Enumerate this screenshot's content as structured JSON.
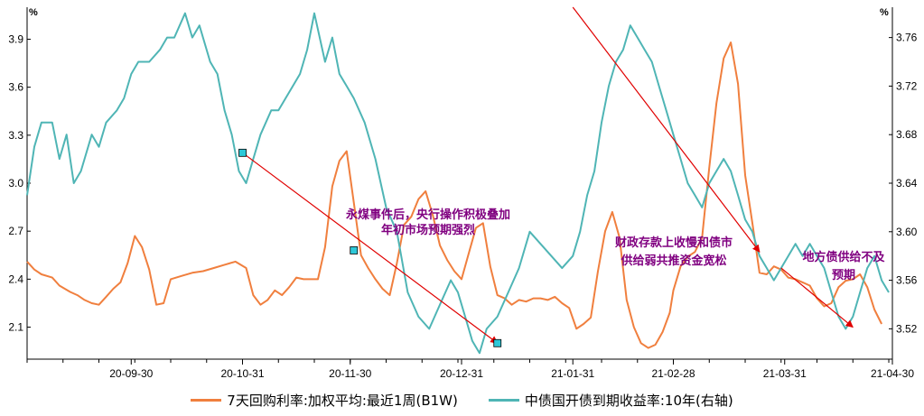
{
  "chart_data": {
    "type": "line",
    "y_left_unit": "%",
    "y_right_unit": "%",
    "y_left": {
      "range": [
        1.9,
        4.1
      ],
      "ticks": [
        "2.1",
        "2.4",
        "2.7",
        "3.0",
        "3.3",
        "3.6",
        "3.9"
      ],
      "tick_values": [
        2.1,
        2.4,
        2.7,
        3.0,
        3.3,
        3.6,
        3.9
      ]
    },
    "y_right": {
      "range": [
        3.495,
        3.785
      ],
      "ticks": [
        "3.52",
        "3.56",
        "3.60",
        "3.64",
        "3.68",
        "3.72",
        "3.76"
      ],
      "tick_values": [
        3.52,
        3.56,
        3.6,
        3.64,
        3.68,
        3.72,
        3.76
      ]
    },
    "x_range": [
      "2020-09-01",
      "2021-04-30"
    ],
    "x_ticks": [
      {
        "label": "20-09-30",
        "date": "2020-09-30"
      },
      {
        "label": "20-10-31",
        "date": "2020-10-31"
      },
      {
        "label": "20-11-30",
        "date": "2020-11-30"
      },
      {
        "label": "20-12-31",
        "date": "2020-12-31"
      },
      {
        "label": "21-01-31",
        "date": "2021-01-31"
      },
      {
        "label": "21-02-28",
        "date": "2021-02-28"
      },
      {
        "label": "21-03-31",
        "date": "2021-03-31"
      },
      {
        "label": "21-04-30",
        "date": "2021-04-30"
      }
    ],
    "series": [
      {
        "name": "7天回购利率:加权平均:最近1周(B1W)",
        "color": "#f07f3e",
        "axis": "left",
        "points": [
          [
            "2020-09-01",
            2.51
          ],
          [
            "2020-09-03",
            2.46
          ],
          [
            "2020-09-05",
            2.43
          ],
          [
            "2020-09-08",
            2.41
          ],
          [
            "2020-09-10",
            2.36
          ],
          [
            "2020-09-13",
            2.32
          ],
          [
            "2020-09-15",
            2.3
          ],
          [
            "2020-09-17",
            2.27
          ],
          [
            "2020-09-19",
            2.25
          ],
          [
            "2020-09-21",
            2.24
          ],
          [
            "2020-09-23",
            2.29
          ],
          [
            "2020-09-25",
            2.34
          ],
          [
            "2020-09-27",
            2.38
          ],
          [
            "2020-09-29",
            2.5
          ],
          [
            "2020-10-01",
            2.67
          ],
          [
            "2020-10-03",
            2.6
          ],
          [
            "2020-10-05",
            2.46
          ],
          [
            "2020-10-07",
            2.24
          ],
          [
            "2020-10-09",
            2.25
          ],
          [
            "2020-10-11",
            2.4
          ],
          [
            "2020-10-14",
            2.42
          ],
          [
            "2020-10-17",
            2.44
          ],
          [
            "2020-10-20",
            2.45
          ],
          [
            "2020-10-23",
            2.47
          ],
          [
            "2020-10-26",
            2.49
          ],
          [
            "2020-10-29",
            2.51
          ],
          [
            "2020-11-01",
            2.47
          ],
          [
            "2020-11-03",
            2.3
          ],
          [
            "2020-11-05",
            2.24
          ],
          [
            "2020-11-07",
            2.27
          ],
          [
            "2020-11-09",
            2.33
          ],
          [
            "2020-11-11",
            2.3
          ],
          [
            "2020-11-13",
            2.35
          ],
          [
            "2020-11-15",
            2.41
          ],
          [
            "2020-11-17",
            2.4
          ],
          [
            "2020-11-19",
            2.4
          ],
          [
            "2020-11-21",
            2.4
          ],
          [
            "2020-11-23",
            2.6
          ],
          [
            "2020-11-25",
            2.98
          ],
          [
            "2020-11-27",
            3.14
          ],
          [
            "2020-11-29",
            3.2
          ],
          [
            "2020-12-01",
            2.88
          ],
          [
            "2020-12-03",
            2.55
          ],
          [
            "2020-12-05",
            2.47
          ],
          [
            "2020-12-07",
            2.4
          ],
          [
            "2020-12-09",
            2.34
          ],
          [
            "2020-12-11",
            2.3
          ],
          [
            "2020-12-13",
            2.5
          ],
          [
            "2020-12-15",
            2.74
          ],
          [
            "2020-12-17",
            2.79
          ],
          [
            "2020-12-19",
            2.9
          ],
          [
            "2020-12-21",
            2.95
          ],
          [
            "2020-12-23",
            2.8
          ],
          [
            "2020-12-25",
            2.61
          ],
          [
            "2020-12-27",
            2.52
          ],
          [
            "2020-12-29",
            2.45
          ],
          [
            "2020-12-31",
            2.4
          ],
          [
            "2021-01-02",
            2.56
          ],
          [
            "2021-01-04",
            2.72
          ],
          [
            "2021-01-06",
            2.75
          ],
          [
            "2021-01-08",
            2.48
          ],
          [
            "2021-01-10",
            2.3
          ],
          [
            "2021-01-12",
            2.28
          ],
          [
            "2021-01-14",
            2.24
          ],
          [
            "2021-01-16",
            2.27
          ],
          [
            "2021-01-18",
            2.26
          ],
          [
            "2021-01-20",
            2.28
          ],
          [
            "2021-01-22",
            2.28
          ],
          [
            "2021-01-24",
            2.27
          ],
          [
            "2021-01-26",
            2.29
          ],
          [
            "2021-01-28",
            2.25
          ],
          [
            "2021-01-30",
            2.22
          ],
          [
            "2021-02-01",
            2.09
          ],
          [
            "2021-02-03",
            2.12
          ],
          [
            "2021-02-05",
            2.16
          ],
          [
            "2021-02-07",
            2.45
          ],
          [
            "2021-02-09",
            2.7
          ],
          [
            "2021-02-11",
            2.82
          ],
          [
            "2021-02-13",
            2.66
          ],
          [
            "2021-02-15",
            2.27
          ],
          [
            "2021-02-17",
            2.1
          ],
          [
            "2021-02-19",
            2.0
          ],
          [
            "2021-02-21",
            1.97
          ],
          [
            "2021-02-23",
            1.99
          ],
          [
            "2021-02-25",
            2.07
          ],
          [
            "2021-02-27",
            2.19
          ],
          [
            "2021-02-28",
            2.33
          ],
          [
            "2021-03-02",
            2.48
          ],
          [
            "2021-03-04",
            2.54
          ],
          [
            "2021-03-06",
            2.57
          ],
          [
            "2021-03-08",
            2.66
          ],
          [
            "2021-03-10",
            3.1
          ],
          [
            "2021-03-12",
            3.5
          ],
          [
            "2021-03-14",
            3.78
          ],
          [
            "2021-03-16",
            3.88
          ],
          [
            "2021-03-18",
            3.62
          ],
          [
            "2021-03-20",
            3.05
          ],
          [
            "2021-03-22",
            2.75
          ],
          [
            "2021-03-24",
            2.44
          ],
          [
            "2021-03-26",
            2.43
          ],
          [
            "2021-03-28",
            2.48
          ],
          [
            "2021-03-30",
            2.46
          ],
          [
            "2021-04-01",
            2.41
          ],
          [
            "2021-04-03",
            2.4
          ],
          [
            "2021-04-05",
            2.38
          ],
          [
            "2021-04-07",
            2.36
          ],
          [
            "2021-04-09",
            2.28
          ],
          [
            "2021-04-11",
            2.23
          ],
          [
            "2021-04-13",
            2.25
          ],
          [
            "2021-04-15",
            2.35
          ],
          [
            "2021-04-17",
            2.39
          ],
          [
            "2021-04-19",
            2.4
          ],
          [
            "2021-04-21",
            2.43
          ],
          [
            "2021-04-23",
            2.35
          ],
          [
            "2021-04-25",
            2.21
          ],
          [
            "2021-04-27",
            2.12
          ]
        ]
      },
      {
        "name": "中债国开债到期收益率:10年(右轴)",
        "color": "#4fb5b5",
        "axis": "right",
        "points": [
          [
            "2020-09-01",
            3.63
          ],
          [
            "2020-09-03",
            3.67
          ],
          [
            "2020-09-05",
            3.69
          ],
          [
            "2020-09-08",
            3.69
          ],
          [
            "2020-09-10",
            3.66
          ],
          [
            "2020-09-12",
            3.68
          ],
          [
            "2020-09-14",
            3.64
          ],
          [
            "2020-09-16",
            3.65
          ],
          [
            "2020-09-19",
            3.68
          ],
          [
            "2020-09-21",
            3.67
          ],
          [
            "2020-09-23",
            3.69
          ],
          [
            "2020-09-26",
            3.7
          ],
          [
            "2020-09-28",
            3.71
          ],
          [
            "2020-09-30",
            3.73
          ],
          [
            "2020-10-02",
            3.74
          ],
          [
            "2020-10-05",
            3.74
          ],
          [
            "2020-10-08",
            3.75
          ],
          [
            "2020-10-10",
            3.76
          ],
          [
            "2020-10-12",
            3.76
          ],
          [
            "2020-10-15",
            3.78
          ],
          [
            "2020-10-17",
            3.76
          ],
          [
            "2020-10-19",
            3.77
          ],
          [
            "2020-10-22",
            3.74
          ],
          [
            "2020-10-24",
            3.73
          ],
          [
            "2020-10-26",
            3.7
          ],
          [
            "2020-10-28",
            3.68
          ],
          [
            "2020-10-30",
            3.65
          ],
          [
            "2020-11-01",
            3.64
          ],
          [
            "2020-11-03",
            3.66
          ],
          [
            "2020-11-05",
            3.68
          ],
          [
            "2020-11-08",
            3.7
          ],
          [
            "2020-11-10",
            3.7
          ],
          [
            "2020-11-12",
            3.71
          ],
          [
            "2020-11-14",
            3.72
          ],
          [
            "2020-11-16",
            3.73
          ],
          [
            "2020-11-18",
            3.75
          ],
          [
            "2020-11-20",
            3.78
          ],
          [
            "2020-11-23",
            3.74
          ],
          [
            "2020-11-25",
            3.76
          ],
          [
            "2020-11-27",
            3.73
          ],
          [
            "2020-11-29",
            3.72
          ],
          [
            "2020-12-01",
            3.71
          ],
          [
            "2020-12-04",
            3.69
          ],
          [
            "2020-12-07",
            3.66
          ],
          [
            "2020-12-10",
            3.62
          ],
          [
            "2020-12-13",
            3.6
          ],
          [
            "2020-12-16",
            3.55
          ],
          [
            "2020-12-19",
            3.53
          ],
          [
            "2020-12-22",
            3.52
          ],
          [
            "2020-12-25",
            3.54
          ],
          [
            "2020-12-28",
            3.56
          ],
          [
            "2020-12-30",
            3.55
          ],
          [
            "2021-01-01",
            3.53
          ],
          [
            "2021-01-03",
            3.51
          ],
          [
            "2021-01-05",
            3.5
          ],
          [
            "2021-01-07",
            3.52
          ],
          [
            "2021-01-10",
            3.53
          ],
          [
            "2021-01-13",
            3.55
          ],
          [
            "2021-01-16",
            3.57
          ],
          [
            "2021-01-19",
            3.6
          ],
          [
            "2021-01-22",
            3.59
          ],
          [
            "2021-01-25",
            3.58
          ],
          [
            "2021-01-28",
            3.57
          ],
          [
            "2021-01-31",
            3.58
          ],
          [
            "2021-02-02",
            3.6
          ],
          [
            "2021-02-04",
            3.63
          ],
          [
            "2021-02-06",
            3.65
          ],
          [
            "2021-02-08",
            3.69
          ],
          [
            "2021-02-10",
            3.72
          ],
          [
            "2021-02-12",
            3.74
          ],
          [
            "2021-02-14",
            3.75
          ],
          [
            "2021-02-16",
            3.77
          ],
          [
            "2021-02-18",
            3.76
          ],
          [
            "2021-02-20",
            3.75
          ],
          [
            "2021-02-22",
            3.74
          ],
          [
            "2021-02-24",
            3.72
          ],
          [
            "2021-02-26",
            3.7
          ],
          [
            "2021-02-28",
            3.68
          ],
          [
            "2021-03-02",
            3.66
          ],
          [
            "2021-03-04",
            3.64
          ],
          [
            "2021-03-06",
            3.63
          ],
          [
            "2021-03-08",
            3.62
          ],
          [
            "2021-03-10",
            3.64
          ],
          [
            "2021-03-12",
            3.65
          ],
          [
            "2021-03-14",
            3.66
          ],
          [
            "2021-03-16",
            3.65
          ],
          [
            "2021-03-18",
            3.63
          ],
          [
            "2021-03-20",
            3.61
          ],
          [
            "2021-03-22",
            3.6
          ],
          [
            "2021-03-24",
            3.58
          ],
          [
            "2021-03-26",
            3.57
          ],
          [
            "2021-03-28",
            3.56
          ],
          [
            "2021-03-30",
            3.57
          ],
          [
            "2021-04-01",
            3.58
          ],
          [
            "2021-04-03",
            3.59
          ],
          [
            "2021-04-05",
            3.58
          ],
          [
            "2021-04-07",
            3.59
          ],
          [
            "2021-04-09",
            3.58
          ],
          [
            "2021-04-11",
            3.57
          ],
          [
            "2021-04-13",
            3.55
          ],
          [
            "2021-04-15",
            3.53
          ],
          [
            "2021-04-17",
            3.52
          ],
          [
            "2021-04-19",
            3.53
          ],
          [
            "2021-04-21",
            3.55
          ],
          [
            "2021-04-23",
            3.57
          ],
          [
            "2021-04-25",
            3.58
          ],
          [
            "2021-04-27",
            3.56
          ],
          [
            "2021-04-29",
            3.55
          ]
        ]
      }
    ],
    "annotations": [
      {
        "lines": [
          "永煤事件后，央行操作积极叠加",
          "年初市场预期强烈"
        ],
        "arrow": {
          "from": [
            "2020-10-31",
            3.19
          ],
          "mid": [
            "2020-12-01",
            2.58
          ],
          "to": [
            "2021-01-10",
            2.0
          ]
        }
      },
      {
        "lines": [
          "财政存款上收慢和债市",
          "供给弱共推资金宽松"
        ],
        "arrow": {
          "from": [
            "2021-01-31",
            4.1
          ],
          "to": [
            "2021-03-24",
            2.57
          ]
        }
      },
      {
        "lines": [
          "地方债供给不及",
          "预期"
        ],
        "arrow": {
          "from": [
            "2021-03-30",
            2.47
          ],
          "to": [
            "2021-04-19",
            2.1
          ]
        }
      }
    ]
  },
  "legend": [
    {
      "label": "7天回购利率:加权平均:最近1周(B1W)",
      "color": "#f07f3e"
    },
    {
      "label": "中债国开债到期收益率:10年(右轴)",
      "color": "#4fb5b5"
    }
  ]
}
